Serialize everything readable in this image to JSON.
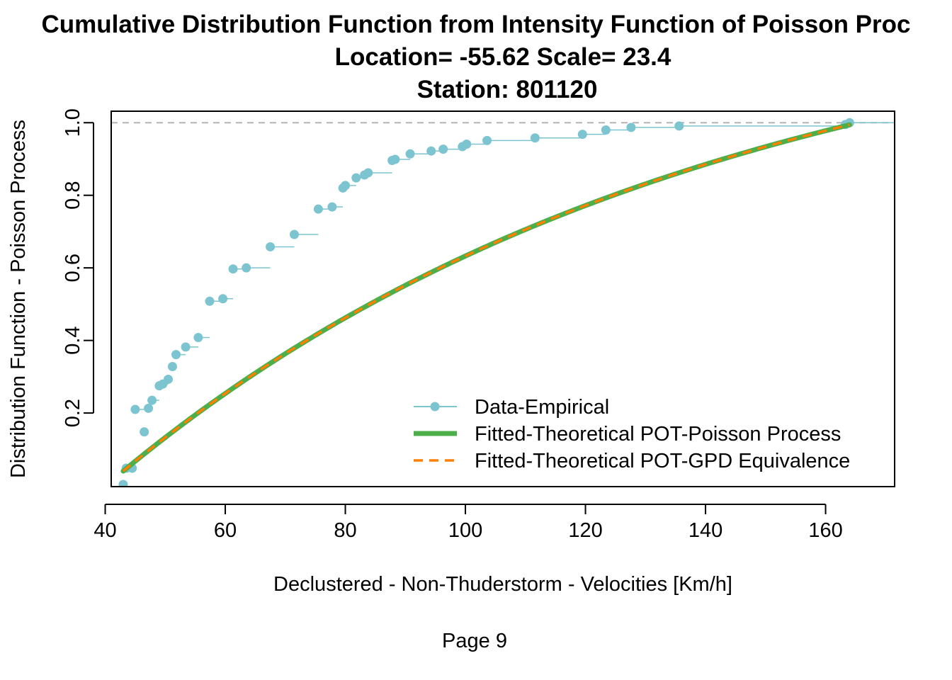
{
  "chart_data": {
    "type": "line",
    "title_lines": [
      "Cumulative Distribution Function from Intensity Function of Poisson Proc",
      "Location= -55.62  Scale= 23.4",
      "Station: 801120"
    ],
    "xlabel": "Declustered - Non-Thuderstorm - Velocities [Km/h]",
    "ylabel": "Distribution Function - Poisson Process",
    "footer": "Page 9",
    "xlim": [
      41,
      171.5
    ],
    "ylim": [
      -0.0028,
      1.0317
    ],
    "x_ticks": [
      40,
      60,
      80,
      100,
      120,
      140,
      160
    ],
    "x_tick_labels": [
      "40",
      "60",
      "80",
      "100",
      "120",
      "140",
      "160"
    ],
    "y_ticks": [
      0.2,
      0.4,
      0.6,
      0.8,
      1.0
    ],
    "y_tick_labels": [
      "0.2",
      "0.4",
      "0.6",
      "0.8",
      "1.0"
    ],
    "reference_line_y": 1.0,
    "threshold": 43,
    "location": -55.62,
    "scale": 23.4,
    "legend_position": "bottom-right",
    "colors": {
      "empirical": "#7CC4CF",
      "poisson": "#4DAF4A",
      "gpd": "#FF7F00",
      "reference": "#B3B3B3"
    },
    "series": [
      {
        "name": "Data-Empirical",
        "points": [
          {
            "x": 43.0,
            "y": 0.003
          },
          {
            "x": 43.5,
            "y": 0.048
          },
          {
            "x": 44.5,
            "y": 0.048
          },
          {
            "x": 45.0,
            "y": 0.21
          },
          {
            "x": 46.5,
            "y": 0.148
          },
          {
            "x": 47.2,
            "y": 0.213
          },
          {
            "x": 47.8,
            "y": 0.235
          },
          {
            "x": 49.0,
            "y": 0.275
          },
          {
            "x": 49.6,
            "y": 0.28
          },
          {
            "x": 50.5,
            "y": 0.293
          },
          {
            "x": 51.2,
            "y": 0.328
          },
          {
            "x": 51.8,
            "y": 0.361
          },
          {
            "x": 53.4,
            "y": 0.382
          },
          {
            "x": 55.5,
            "y": 0.408
          },
          {
            "x": 57.4,
            "y": 0.508
          },
          {
            "x": 59.6,
            "y": 0.515
          },
          {
            "x": 61.3,
            "y": 0.597
          },
          {
            "x": 63.5,
            "y": 0.6
          },
          {
            "x": 67.5,
            "y": 0.658
          },
          {
            "x": 71.5,
            "y": 0.692
          },
          {
            "x": 75.5,
            "y": 0.762
          },
          {
            "x": 77.8,
            "y": 0.768
          },
          {
            "x": 79.6,
            "y": 0.82
          },
          {
            "x": 80.0,
            "y": 0.827
          },
          {
            "x": 81.8,
            "y": 0.848
          },
          {
            "x": 83.2,
            "y": 0.856
          },
          {
            "x": 83.8,
            "y": 0.862
          },
          {
            "x": 87.8,
            "y": 0.896
          },
          {
            "x": 88.3,
            "y": 0.899
          },
          {
            "x": 90.8,
            "y": 0.914
          },
          {
            "x": 94.3,
            "y": 0.922
          },
          {
            "x": 96.3,
            "y": 0.927
          },
          {
            "x": 99.5,
            "y": 0.934
          },
          {
            "x": 100.2,
            "y": 0.941
          },
          {
            "x": 103.6,
            "y": 0.951
          },
          {
            "x": 111.6,
            "y": 0.958
          },
          {
            "x": 119.5,
            "y": 0.968
          },
          {
            "x": 123.4,
            "y": 0.98
          },
          {
            "x": 127.6,
            "y": 0.987
          },
          {
            "x": 135.6,
            "y": 0.991
          },
          {
            "x": 163.3,
            "y": 0.995
          },
          {
            "x": 164.0,
            "y": 1.0
          }
        ]
      },
      {
        "name": "Fitted-Theoretical POT-Poisson Process",
        "x_range": [
          43,
          164
        ]
      },
      {
        "name": "Fitted-Theoretical POT-GPD Equivalence",
        "x_range": [
          43,
          164
        ]
      }
    ]
  }
}
